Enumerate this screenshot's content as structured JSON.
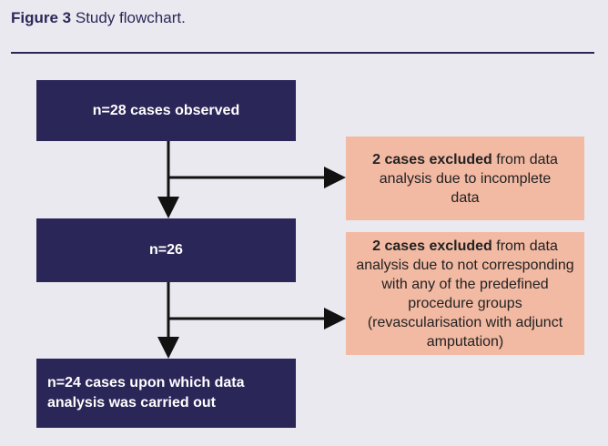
{
  "header": {
    "label": "Figure 3",
    "caption": "Study flowchart."
  },
  "nodes": [
    {
      "label": "n=28 cases observed"
    },
    {
      "label": "n=26"
    },
    {
      "label": "n=24 cases upon which data analysis was carried out"
    }
  ],
  "exclusions": [
    {
      "bold": "2 cases excluded",
      "text": "from data analysis due to incomplete data"
    },
    {
      "bold": "2 cases excluded",
      "text": "from data analysis due to not corresponding with any of the predefined procedure groups (revascularisation with adjunct amputation)"
    }
  ]
}
